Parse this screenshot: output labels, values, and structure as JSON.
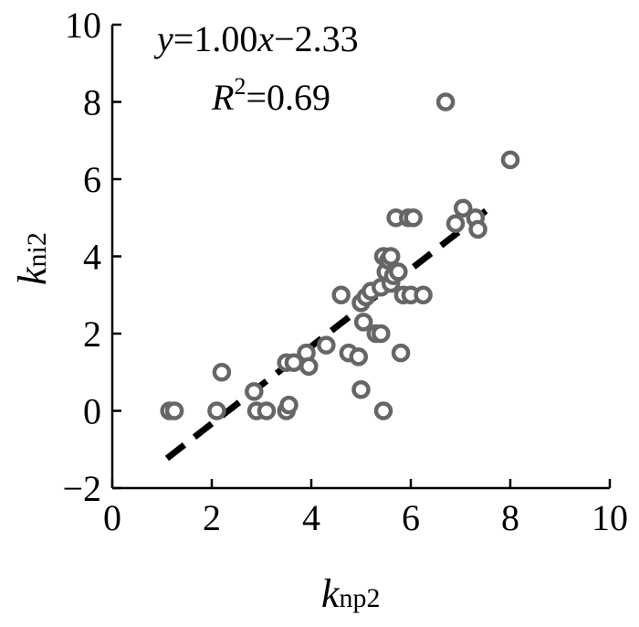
{
  "chart_data": {
    "type": "scatter",
    "title": "",
    "xlabel": {
      "main": "k",
      "sub": "np2"
    },
    "ylabel": {
      "main": "k",
      "sub": "ni2"
    },
    "xlim": [
      0,
      10
    ],
    "ylim": [
      -2,
      10
    ],
    "xticks": [
      "0",
      "2",
      "4",
      "6",
      "8",
      "10"
    ],
    "yticks": [
      "−2",
      "0",
      "2",
      "4",
      "6",
      "8",
      "10"
    ],
    "xtick_values": [
      0,
      2,
      4,
      6,
      8,
      10
    ],
    "ytick_values": [
      -2,
      0,
      2,
      4,
      6,
      8,
      10
    ],
    "grid": false,
    "annotations": {
      "equation": {
        "y": "y",
        "eq": "=1.00",
        "x": "x",
        "rest": "−2.33"
      },
      "r2": {
        "r": "R",
        "sup": "2",
        "rest": "=0.69"
      }
    },
    "fit_line": {
      "slope": 1.0,
      "intercept": -2.33,
      "x_range": [
        1.1,
        7.65
      ],
      "style": "dashed"
    },
    "points": [
      {
        "x": 1.15,
        "y": 0.0
      },
      {
        "x": 1.25,
        "y": 0.0
      },
      {
        "x": 2.1,
        "y": 0.0
      },
      {
        "x": 2.2,
        "y": 1.0
      },
      {
        "x": 2.85,
        "y": 0.5
      },
      {
        "x": 2.9,
        "y": 0.0
      },
      {
        "x": 3.1,
        "y": 0.0
      },
      {
        "x": 3.5,
        "y": 0.0
      },
      {
        "x": 3.55,
        "y": 0.15
      },
      {
        "x": 3.5,
        "y": 1.25
      },
      {
        "x": 3.65,
        "y": 1.25
      },
      {
        "x": 3.9,
        "y": 1.5
      },
      {
        "x": 3.95,
        "y": 1.15
      },
      {
        "x": 4.3,
        "y": 1.7
      },
      {
        "x": 4.6,
        "y": 3.0
      },
      {
        "x": 4.75,
        "y": 1.5
      },
      {
        "x": 4.95,
        "y": 1.4
      },
      {
        "x": 5.0,
        "y": 0.55
      },
      {
        "x": 5.0,
        "y": 2.8
      },
      {
        "x": 5.05,
        "y": 2.3
      },
      {
        "x": 5.1,
        "y": 2.95
      },
      {
        "x": 5.2,
        "y": 3.1
      },
      {
        "x": 5.3,
        "y": 2.0
      },
      {
        "x": 5.4,
        "y": 2.0
      },
      {
        "x": 5.4,
        "y": 3.2
      },
      {
        "x": 5.45,
        "y": 4.0
      },
      {
        "x": 5.45,
        "y": 0.0
      },
      {
        "x": 5.5,
        "y": 3.6
      },
      {
        "x": 5.55,
        "y": 3.9
      },
      {
        "x": 5.6,
        "y": 3.3
      },
      {
        "x": 5.6,
        "y": 4.0
      },
      {
        "x": 5.65,
        "y": 3.5
      },
      {
        "x": 5.7,
        "y": 5.0
      },
      {
        "x": 5.75,
        "y": 3.6
      },
      {
        "x": 5.8,
        "y": 1.5
      },
      {
        "x": 5.85,
        "y": 3.0
      },
      {
        "x": 5.95,
        "y": 5.0
      },
      {
        "x": 6.0,
        "y": 3.0
      },
      {
        "x": 6.05,
        "y": 5.0
      },
      {
        "x": 6.25,
        "y": 3.0
      },
      {
        "x": 6.7,
        "y": 8.0
      },
      {
        "x": 6.9,
        "y": 4.85
      },
      {
        "x": 7.05,
        "y": 5.25
      },
      {
        "x": 7.3,
        "y": 5.0
      },
      {
        "x": 7.35,
        "y": 4.7
      },
      {
        "x": 8.0,
        "y": 6.5
      }
    ],
    "marker": {
      "stroke": "#666666",
      "fill": "#ffffff"
    },
    "line_color": "#000000"
  }
}
